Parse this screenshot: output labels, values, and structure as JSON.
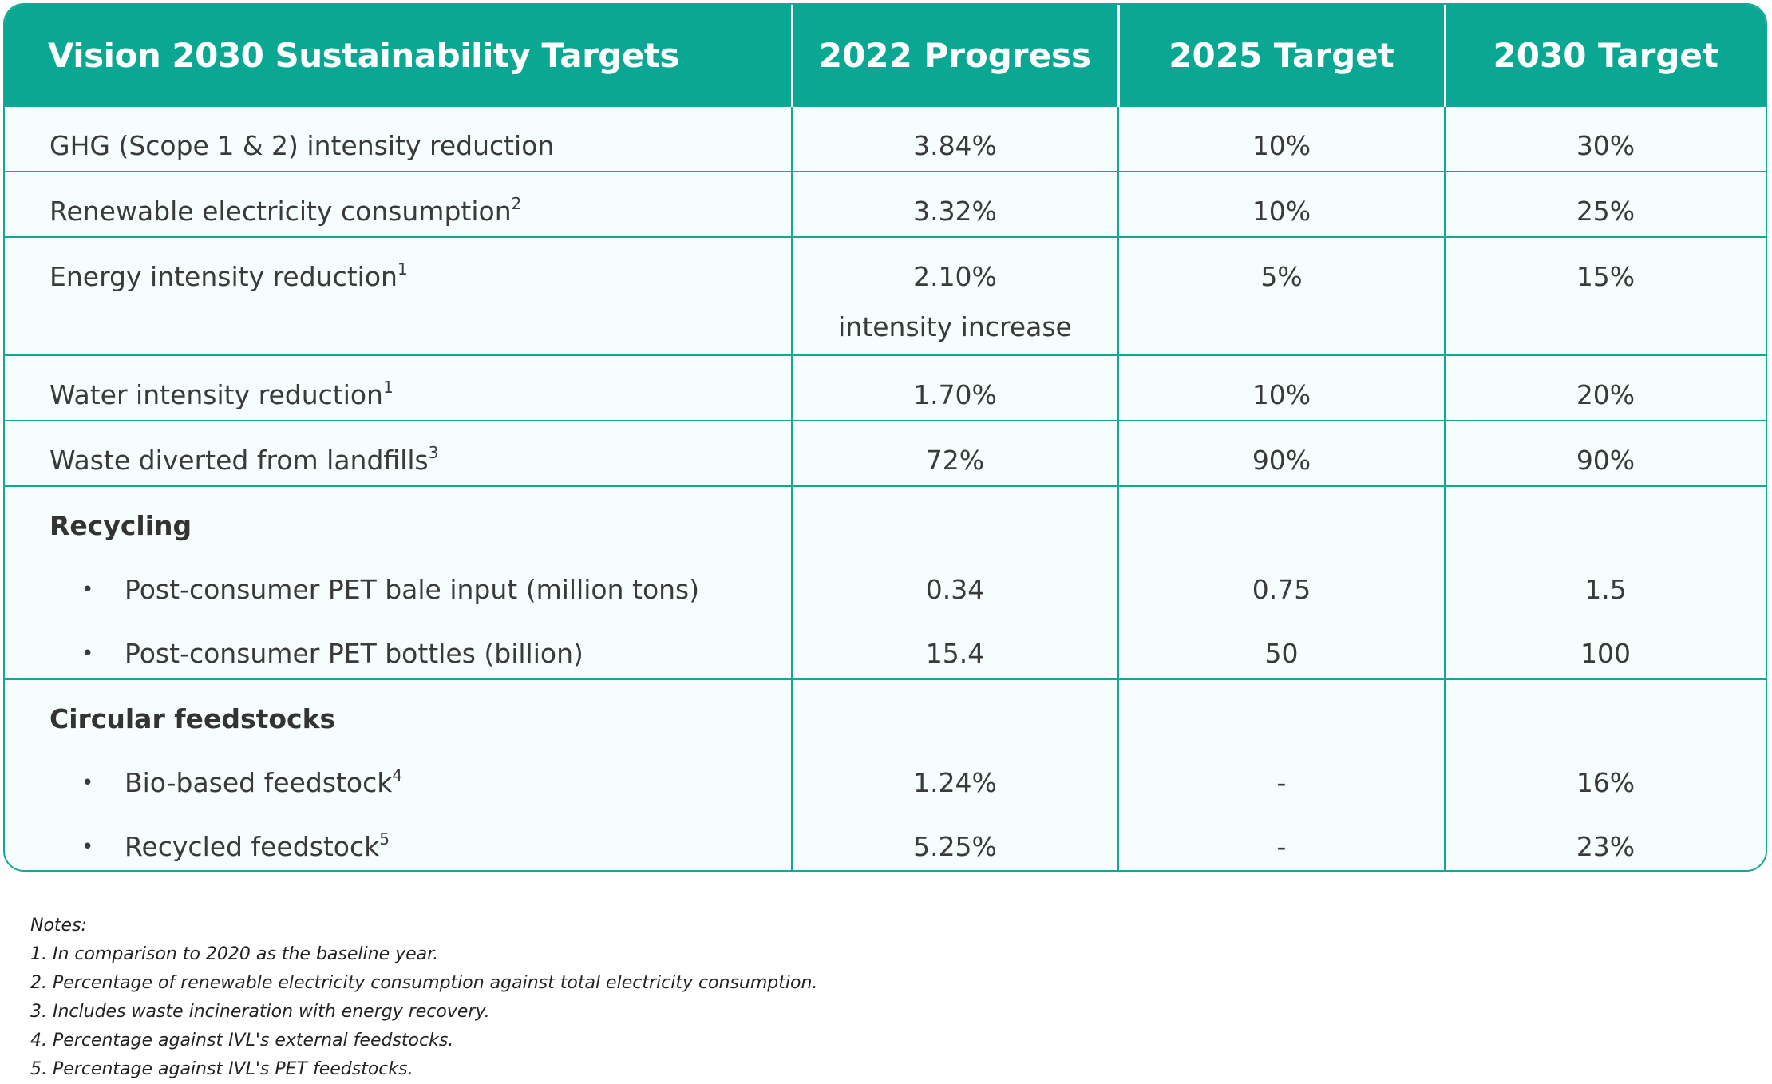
{
  "header": {
    "title": "Vision 2030 Sustainability Targets",
    "col2": "2022 Progress",
    "col3": "2025 Target",
    "col4": "2030 Target"
  },
  "rows": {
    "ghg": {
      "label": "GHG (Scope 1 & 2)  intensity reduction",
      "sup": "",
      "p2022": "3.84%",
      "t2025": "10%",
      "t2030": "30%"
    },
    "renewable": {
      "label": "Renewable electricity consumption",
      "sup": "2",
      "p2022": "3.32%",
      "t2025": "10%",
      "t2030": "25%"
    },
    "energy": {
      "label": "Energy intensity reduction",
      "sup": "1",
      "p2022": "2.10%",
      "p2022_note": "intensity increase",
      "t2025": "5%",
      "t2030": "15%"
    },
    "water": {
      "label": "Water intensity reduction",
      "sup": "1",
      "p2022": "1.70%",
      "t2025": "10%",
      "t2030": "20%"
    },
    "waste": {
      "label": "Waste diverted from landfills",
      "sup": "3",
      "p2022": "72%",
      "t2025": "90%",
      "t2030": "90%"
    }
  },
  "recycling": {
    "heading": "Recycling",
    "items": [
      {
        "label": "Post-consumer PET bale input (million tons)",
        "sup": "",
        "p2022": "0.34",
        "t2025": "0.75",
        "t2030": "1.5"
      },
      {
        "label": "Post-consumer PET bottles (billion)",
        "sup": "",
        "p2022": "15.4",
        "t2025": "50",
        "t2030": "100"
      }
    ]
  },
  "circular": {
    "heading": "Circular feedstocks",
    "items": [
      {
        "label": "Bio-based feedstock",
        "sup": "4",
        "p2022": "1.24%",
        "t2025": "-",
        "t2030": "16%"
      },
      {
        "label": "Recycled feedstock",
        "sup": "5",
        "p2022": "5.25%",
        "t2025": "-",
        "t2030": "23%"
      }
    ]
  },
  "notes": {
    "title": "Notes:",
    "items": [
      "1. In comparison to 2020 as the baseline year.",
      "2. Percentage of renewable electricity consumption against total electricity consumption.",
      "3. Includes waste incineration with energy recovery.",
      "4. Percentage against IVL's external feedstocks.",
      "5. Percentage against IVL's PET feedstocks."
    ]
  },
  "colors": {
    "header_bg": "#0aa893",
    "border": "#13a894",
    "row_bg": "#f5fdfd"
  }
}
